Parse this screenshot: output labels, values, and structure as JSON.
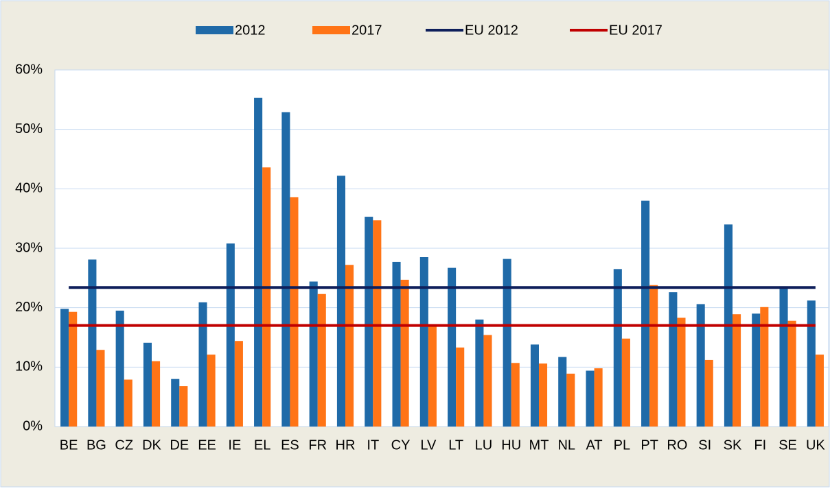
{
  "chart_data": {
    "type": "bar",
    "categories": [
      "BE",
      "BG",
      "CZ",
      "DK",
      "DE",
      "EE",
      "IE",
      "EL",
      "ES",
      "FR",
      "HR",
      "IT",
      "CY",
      "LV",
      "LT",
      "LU",
      "HU",
      "MT",
      "NL",
      "AT",
      "PL",
      "PT",
      "RO",
      "SI",
      "SK",
      "FI",
      "SE",
      "UK"
    ],
    "series": [
      {
        "name": "2012",
        "color": "#1f6aa8",
        "values": [
          19.8,
          28.1,
          19.5,
          14.1,
          8.0,
          20.9,
          30.8,
          55.3,
          52.9,
          24.4,
          42.2,
          35.3,
          27.7,
          28.5,
          26.7,
          18.0,
          28.2,
          13.8,
          11.7,
          9.4,
          26.5,
          38.0,
          22.6,
          20.6,
          34.0,
          19.0,
          23.6,
          21.2
        ]
      },
      {
        "name": "2017",
        "color": "#ff7416",
        "values": [
          19.3,
          12.9,
          7.9,
          11.0,
          6.8,
          12.1,
          14.4,
          43.6,
          38.6,
          22.3,
          27.2,
          34.7,
          24.7,
          16.9,
          13.3,
          15.4,
          10.7,
          10.6,
          8.9,
          9.8,
          14.8,
          23.8,
          18.3,
          11.2,
          18.9,
          20.1,
          17.8,
          12.1
        ]
      },
      {
        "name": "EU 2012",
        "color": "#0e1f5b",
        "type": "line",
        "value": 23.4
      },
      {
        "name": "EU 2017",
        "color": "#c00000",
        "type": "line",
        "value": 17.0
      }
    ],
    "ylim": [
      0,
      60
    ],
    "yticks": [
      {
        "value": 0,
        "label": "0%"
      },
      {
        "value": 10,
        "label": "10%"
      },
      {
        "value": 20,
        "label": "20%"
      },
      {
        "value": 30,
        "label": "30%"
      },
      {
        "value": 40,
        "label": "40%"
      },
      {
        "value": 50,
        "label": "50%"
      },
      {
        "value": 60,
        "label": "60%"
      }
    ],
    "grid": true,
    "legend": "top"
  }
}
